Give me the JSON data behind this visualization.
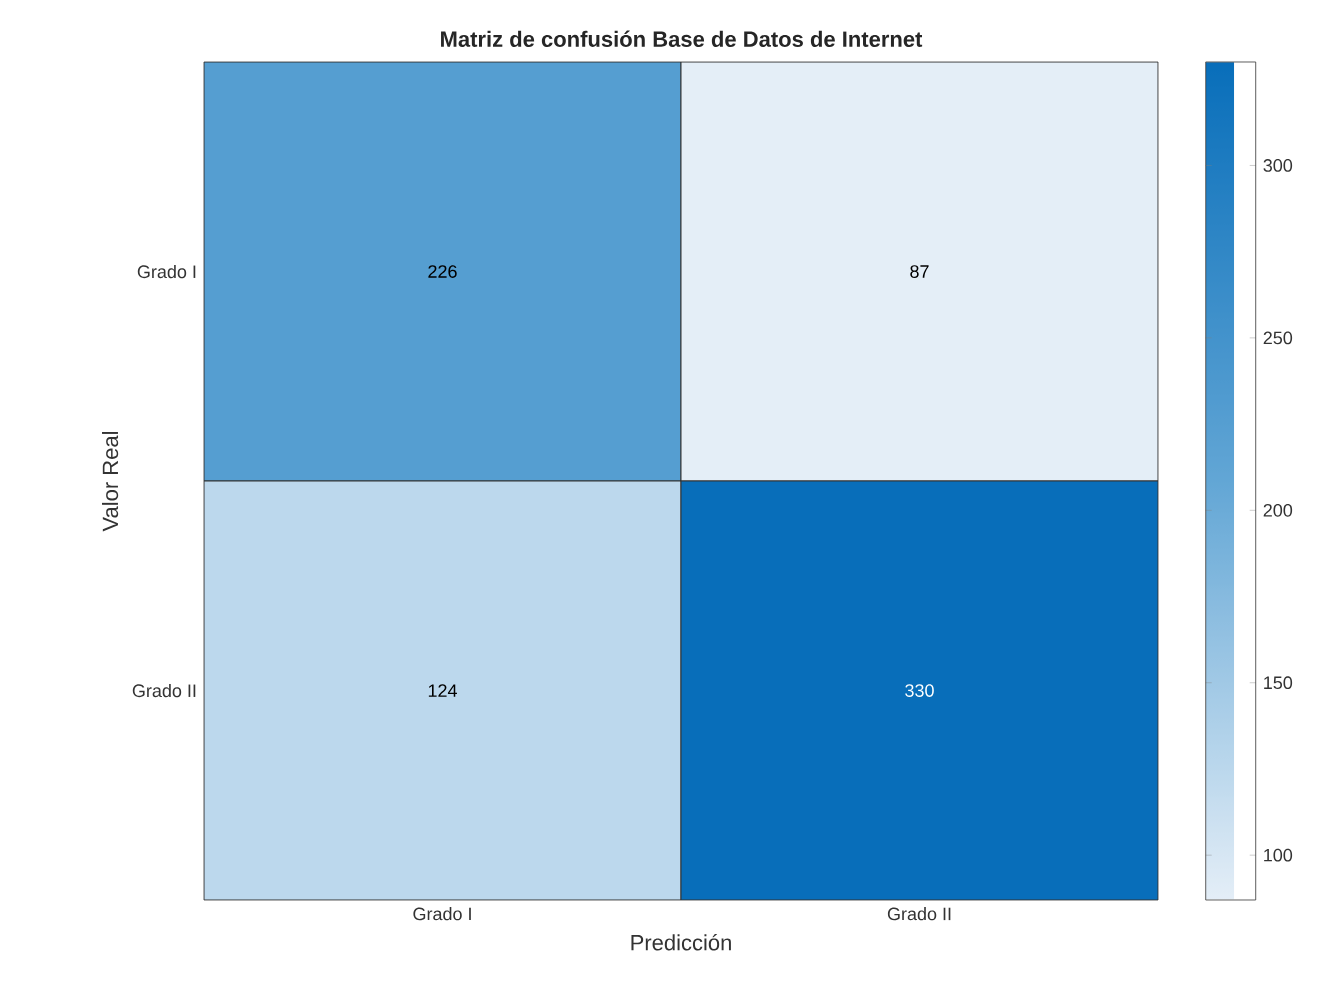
{
  "chart_data": {
    "type": "heatmap",
    "title": "Matriz de confusión Base de Datos de Internet",
    "xlabel": "Predicción",
    "ylabel": "Valor Real",
    "categories": [
      "Grado I",
      "Grado II"
    ],
    "y_categories": [
      "Grado I",
      "Grado II"
    ],
    "cells": [
      [
        226,
        87
      ],
      [
        124,
        330
      ]
    ],
    "data_labels": true,
    "clim": [
      87,
      330
    ],
    "cticks": [
      100,
      150,
      200,
      250,
      300
    ]
  }
}
